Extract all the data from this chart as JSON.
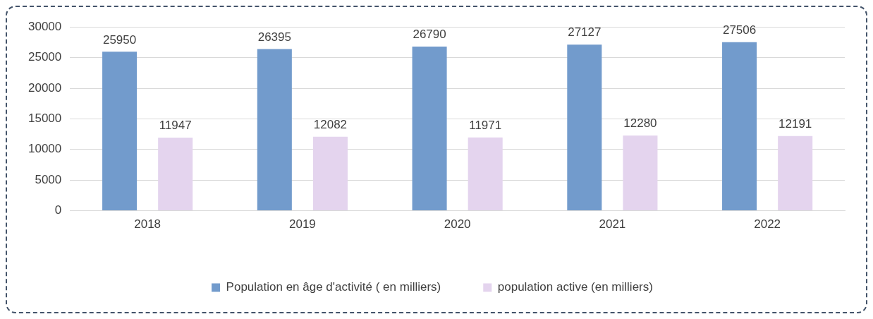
{
  "chart_data": {
    "type": "bar",
    "categories": [
      "2018",
      "2019",
      "2020",
      "2021",
      "2022"
    ],
    "series": [
      {
        "name": "Population en âge d'activité ( en milliers)",
        "color": "#729bcc",
        "values": [
          25950,
          26395,
          26790,
          27127,
          27506
        ]
      },
      {
        "name": "population active (en milliers)",
        "color": "#e4d4ee",
        "values": [
          11947,
          12082,
          11971,
          12280,
          12191
        ]
      }
    ],
    "ylim": [
      0,
      30000
    ],
    "yticks": [
      0,
      5000,
      10000,
      15000,
      20000,
      25000,
      30000
    ],
    "grid": "y",
    "legend": "bottom",
    "data_labels": true
  }
}
